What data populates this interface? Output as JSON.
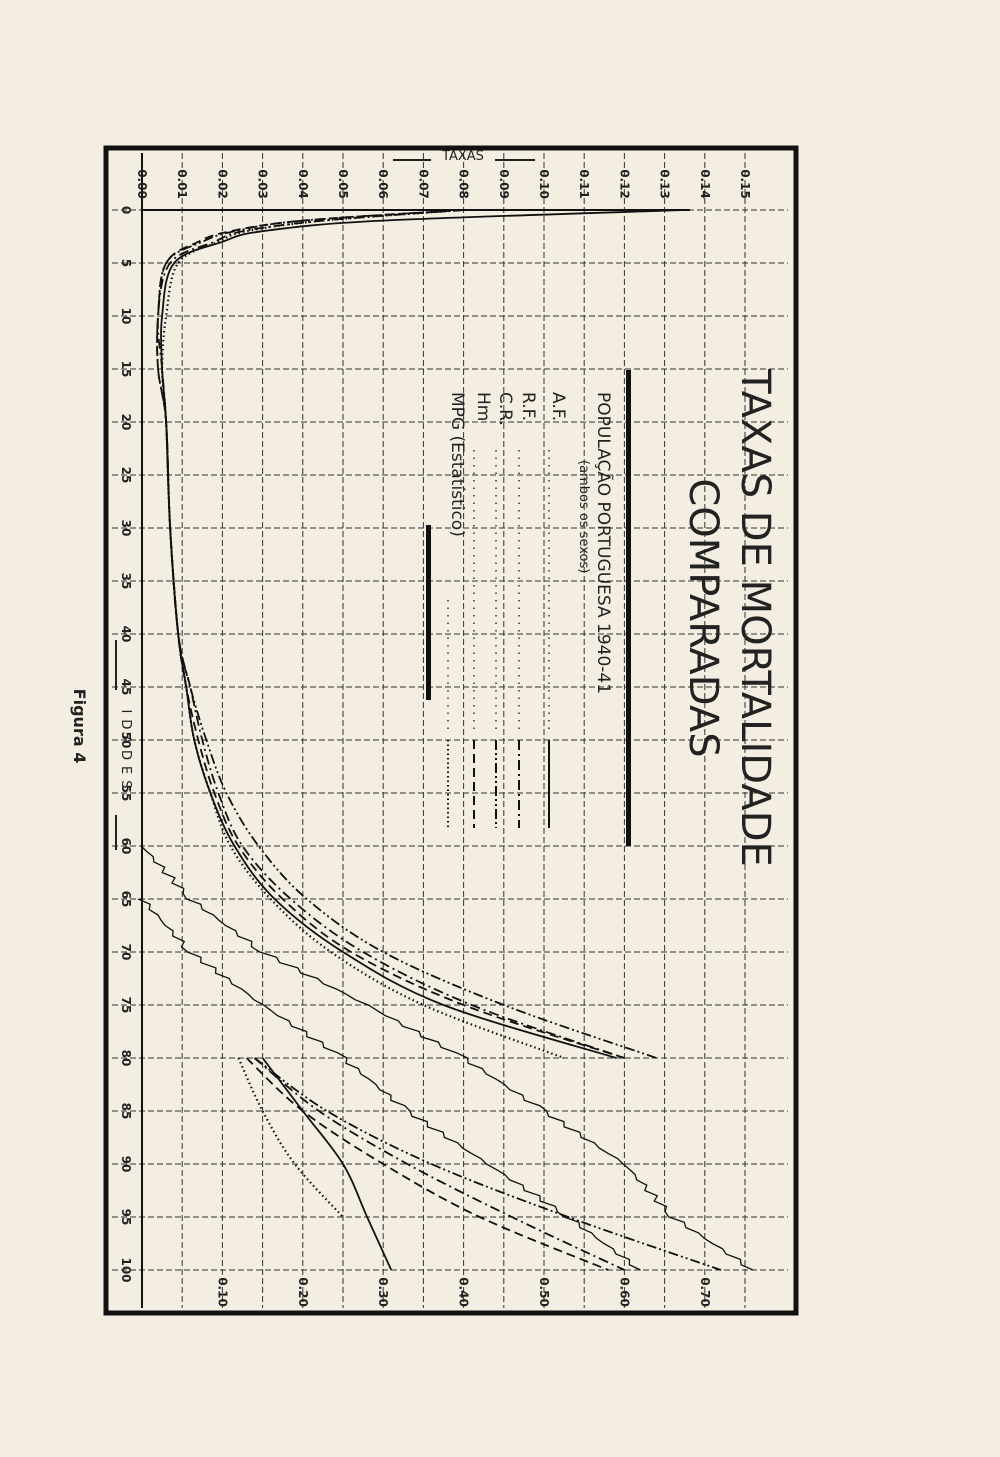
{
  "chart_data": {
    "type": "line",
    "title": "TAXAS DE MORTALIDADE COMPARADAS",
    "subtitle": "POPULAÇÃO PORTUGUESA 1940-41",
    "subtitle2": "(ambos os sexos)",
    "rate_label": "TAXAS",
    "age_label": "IDADES",
    "caption": "Figura 4",
    "age_ticks": [
      "0",
      "5",
      "10",
      "15",
      "20",
      "25",
      "30",
      "35",
      "40",
      "45",
      "50",
      "55",
      "60",
      "65",
      "70",
      "75",
      "80",
      "85",
      "90",
      "95",
      "100"
    ],
    "rate_ticks_upper": [
      "0.00",
      "0.01",
      "0.02",
      "0.03",
      "0.04",
      "0.05",
      "0.06",
      "0.07",
      "0.08",
      "0.09",
      "0.10",
      "0.11",
      "0.12",
      "0.13",
      "0.14",
      "0.15"
    ],
    "rate_ticks_lower": [
      "0.10",
      "0.20",
      "0.30",
      "0.40",
      "0.50",
      "0.60",
      "0.70"
    ],
    "age_range": [
      0,
      100
    ],
    "upper_rate_range": [
      0,
      0.15
    ],
    "lower_rate_range": [
      0,
      0.75
    ],
    "series": [
      {
        "name": "A.F.",
        "style": "solid",
        "upper": [
          [
            0,
            0.135
          ],
          [
            1,
            0.06
          ],
          [
            2,
            0.03
          ],
          [
            3,
            0.02
          ],
          [
            5,
            0.008
          ],
          [
            10,
            0.005
          ],
          [
            15,
            0.005
          ],
          [
            20,
            0.006
          ],
          [
            30,
            0.007
          ],
          [
            40,
            0.009
          ],
          [
            45,
            0.011
          ],
          [
            50,
            0.013
          ],
          [
            55,
            0.017
          ],
          [
            60,
            0.023
          ],
          [
            65,
            0.033
          ],
          [
            70,
            0.05
          ],
          [
            75,
            0.075
          ],
          [
            80,
            0.118
          ]
        ],
        "lower": [
          [
            80,
            0.15
          ],
          [
            85,
            0.2
          ],
          [
            90,
            0.25
          ],
          [
            95,
            0.28
          ],
          [
            100,
            0.31
          ]
        ]
      },
      {
        "name": "R.F.",
        "style": "dashdot",
        "upper": [
          [
            0,
            0.08
          ],
          [
            1,
            0.045
          ],
          [
            2,
            0.025
          ],
          [
            3,
            0.018
          ],
          [
            5,
            0.007
          ],
          [
            10,
            0.004
          ],
          [
            15,
            0.005
          ],
          [
            20,
            0.006
          ],
          [
            30,
            0.007
          ],
          [
            40,
            0.009
          ],
          [
            45,
            0.012
          ],
          [
            50,
            0.015
          ],
          [
            55,
            0.019
          ],
          [
            60,
            0.025
          ],
          [
            65,
            0.037
          ],
          [
            70,
            0.055
          ],
          [
            75,
            0.082
          ],
          [
            80,
            0.12
          ]
        ],
        "lower": [
          [
            80,
            0.14
          ],
          [
            85,
            0.22
          ],
          [
            90,
            0.33
          ],
          [
            95,
            0.46
          ],
          [
            100,
            0.6
          ]
        ]
      },
      {
        "name": "C.R.",
        "style": "dashdotdot",
        "upper": [
          [
            0,
            0.08
          ],
          [
            1,
            0.04
          ],
          [
            2,
            0.023
          ],
          [
            3,
            0.015
          ],
          [
            5,
            0.006
          ],
          [
            10,
            0.004
          ],
          [
            15,
            0.004
          ],
          [
            20,
            0.006
          ],
          [
            30,
            0.007
          ],
          [
            40,
            0.009
          ],
          [
            45,
            0.012
          ],
          [
            50,
            0.016
          ],
          [
            55,
            0.021
          ],
          [
            60,
            0.029
          ],
          [
            65,
            0.041
          ],
          [
            70,
            0.06
          ],
          [
            75,
            0.09
          ],
          [
            80,
            0.128
          ]
        ],
        "lower": [
          [
            80,
            0.14
          ],
          [
            85,
            0.23
          ],
          [
            90,
            0.36
          ],
          [
            95,
            0.53
          ],
          [
            100,
            0.72
          ]
        ]
      },
      {
        "name": "Hm",
        "style": "dashed",
        "upper": [
          [
            0,
            0.08
          ],
          [
            1,
            0.04
          ],
          [
            2,
            0.022
          ],
          [
            3,
            0.014
          ],
          [
            5,
            0.006
          ],
          [
            10,
            0.004
          ],
          [
            15,
            0.004
          ],
          [
            20,
            0.006
          ],
          [
            30,
            0.007
          ],
          [
            40,
            0.009
          ],
          [
            45,
            0.011
          ],
          [
            50,
            0.014
          ],
          [
            55,
            0.018
          ],
          [
            60,
            0.024
          ],
          [
            65,
            0.035
          ],
          [
            70,
            0.052
          ],
          [
            75,
            0.08
          ],
          [
            80,
            0.12
          ]
        ],
        "lower": [
          [
            80,
            0.13
          ],
          [
            85,
            0.2
          ],
          [
            90,
            0.3
          ],
          [
            95,
            0.42
          ],
          [
            100,
            0.58
          ]
        ]
      },
      {
        "name": "MPG (Estatístico)",
        "style": "dotted",
        "upper": [
          [
            0,
            0.08
          ],
          [
            1,
            0.045
          ],
          [
            2,
            0.026
          ],
          [
            3,
            0.019
          ],
          [
            5,
            0.009
          ],
          [
            10,
            0.006
          ],
          [
            15,
            0.005
          ],
          [
            20,
            0.006
          ],
          [
            30,
            0.007
          ],
          [
            40,
            0.009
          ],
          [
            45,
            0.011
          ],
          [
            50,
            0.013
          ],
          [
            55,
            0.017
          ],
          [
            60,
            0.022
          ],
          [
            65,
            0.032
          ],
          [
            70,
            0.047
          ],
          [
            75,
            0.07
          ],
          [
            80,
            0.105
          ]
        ],
        "lower": [
          [
            80,
            0.12
          ],
          [
            85,
            0.15
          ],
          [
            90,
            0.19
          ],
          [
            95,
            0.25
          ]
        ]
      }
    ],
    "lower_bands": {
      "upper_edge": [
        [
          60,
          0.0
        ],
        [
          65,
          0.06
        ],
        [
          70,
          0.15
        ],
        [
          75,
          0.28
        ],
        [
          80,
          0.4
        ],
        [
          85,
          0.5
        ],
        [
          90,
          0.6
        ],
        [
          95,
          0.66
        ],
        [
          100,
          0.76
        ]
      ],
      "lower_edge": [
        [
          65,
          0.0
        ],
        [
          70,
          0.06
        ],
        [
          75,
          0.15
        ],
        [
          80,
          0.25
        ],
        [
          85,
          0.33
        ],
        [
          90,
          0.43
        ],
        [
          95,
          0.53
        ],
        [
          100,
          0.62
        ]
      ]
    }
  }
}
